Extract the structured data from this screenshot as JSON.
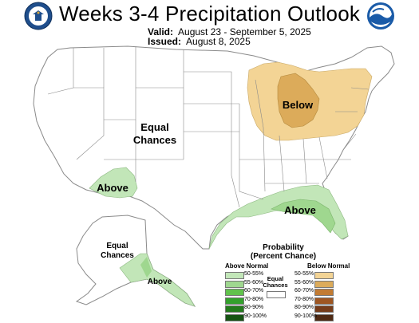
{
  "header": {
    "title": "Weeks 3-4 Precipitation Outlook",
    "valid_label": "Valid:",
    "valid_value": "August 23 - September 5, 2025",
    "issued_label": "Issued:",
    "issued_value": "August 8, 2025"
  },
  "map": {
    "labels": {
      "below": "Below",
      "equal1": "Equal",
      "equal2": "Chances",
      "above_sw": "Above",
      "above_se": "Above",
      "ak_equal1": "Equal",
      "ak_equal2": "Chances",
      "ak_above": "Above"
    },
    "colors": {
      "above_50_55": "#c2e6b8",
      "above_55_60": "#9fd78f",
      "below_50_55": "#f3d495",
      "below_55_60": "#dcab5a",
      "boundary": "#8a8a8a"
    }
  },
  "legend": {
    "title1": "Probability",
    "title2": "(Percent Chance)",
    "above_header": "Above Normal",
    "below_header": "Below Normal",
    "equal1": "Equal",
    "equal2": "Chances",
    "above_items": [
      {
        "label": "50-55%",
        "color": "#c2e6b8"
      },
      {
        "label": "55-60%",
        "color": "#9fd78f"
      },
      {
        "label": "60-70%",
        "color": "#61c24c"
      },
      {
        "label": "70-80%",
        "color": "#33a02c"
      },
      {
        "label": "80-90%",
        "color": "#237a1c"
      },
      {
        "label": "90-100%",
        "color": "#155312"
      }
    ],
    "below_items": [
      {
        "label": "50-55%",
        "color": "#f3d495"
      },
      {
        "label": "55-60%",
        "color": "#dcab5a"
      },
      {
        "label": "60-70%",
        "color": "#c27b33"
      },
      {
        "label": "70-80%",
        "color": "#9e5622"
      },
      {
        "label": "80-90%",
        "color": "#763c1a"
      },
      {
        "label": "90-100%",
        "color": "#4f2a14"
      }
    ]
  }
}
